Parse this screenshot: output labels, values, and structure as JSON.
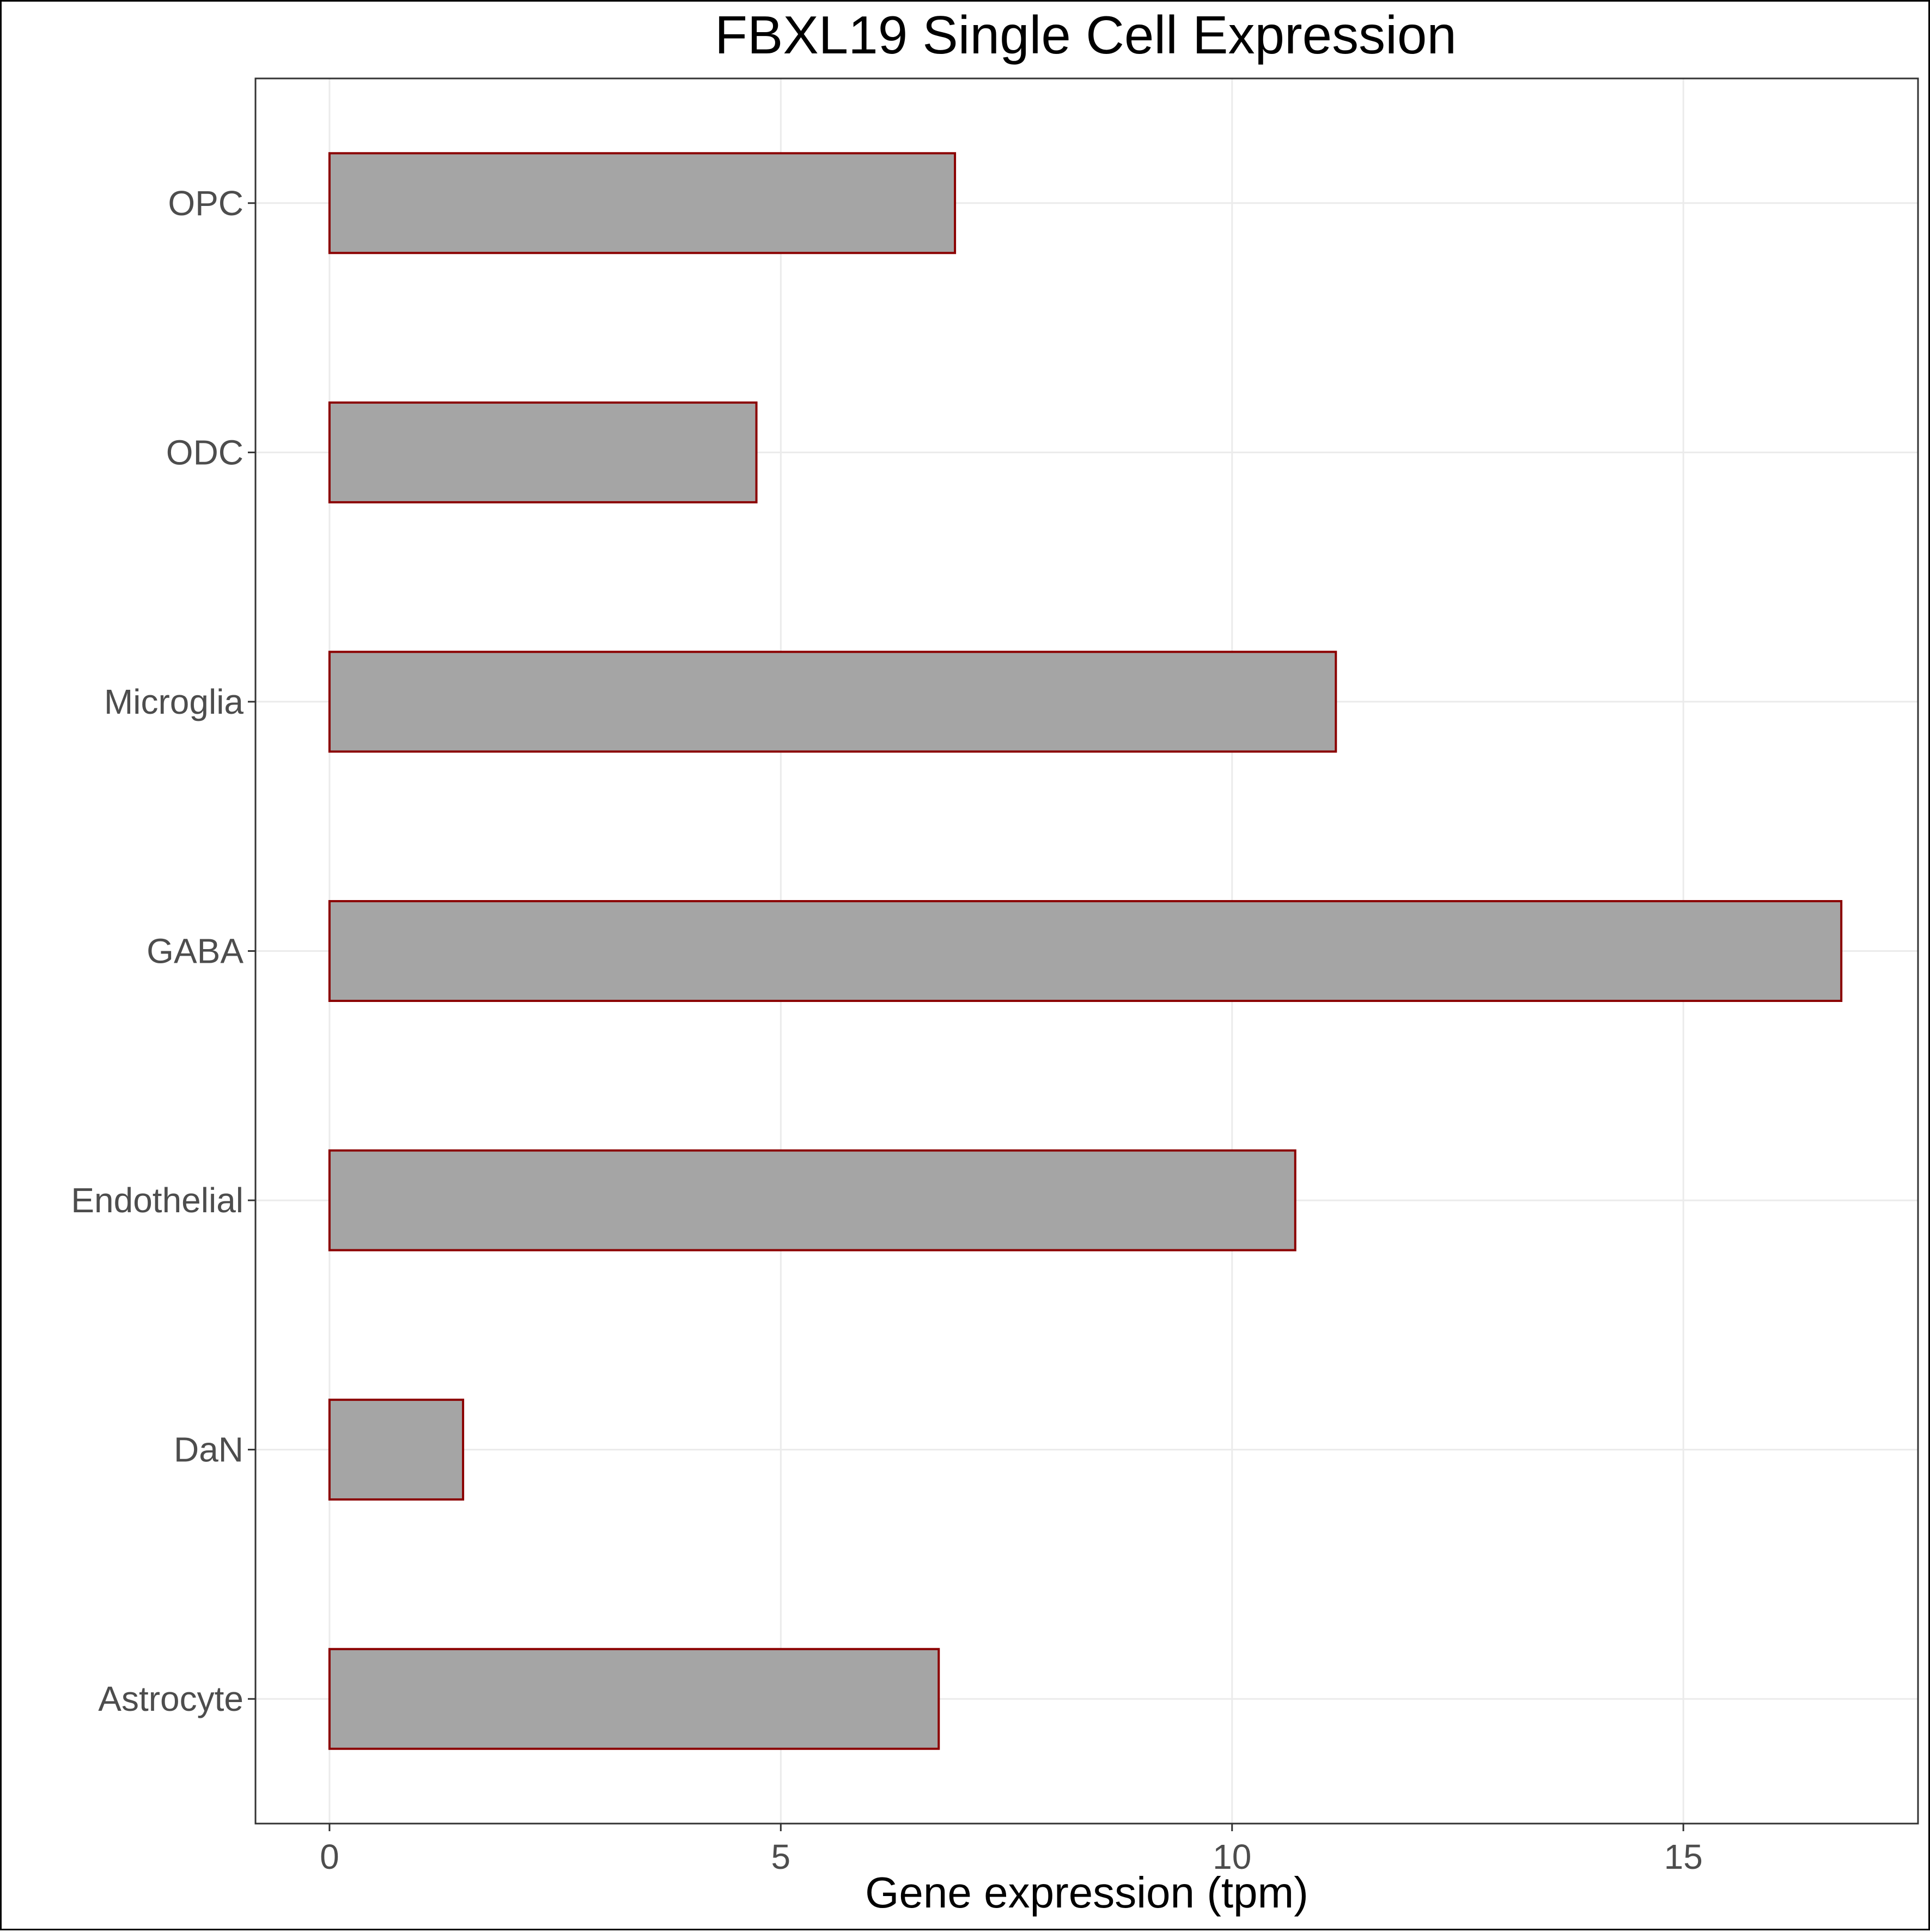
{
  "chart_data": {
    "type": "bar",
    "orientation": "horizontal",
    "title": "FBXL19 Single Cell Expression",
    "xlabel": "Gene expression (tpm)",
    "ylabel": "",
    "categories": [
      "Astrocyte",
      "DaN",
      "Endothelial",
      "GABA",
      "Microglia",
      "ODC",
      "OPC"
    ],
    "values": [
      6.75,
      1.48,
      10.7,
      16.75,
      11.15,
      4.73,
      6.93
    ],
    "xlim": [
      -0.82,
      17.6
    ],
    "xticks": [
      0,
      5,
      10,
      15
    ],
    "xtick_labels": [
      "0",
      "5",
      "10",
      "15"
    ],
    "grid": true,
    "legend": "none",
    "colors": {
      "bar_fill": "#a5a5a5",
      "bar_stroke": "#8b0000",
      "grid": "#ebebeb",
      "panel_border": "#333333"
    }
  }
}
